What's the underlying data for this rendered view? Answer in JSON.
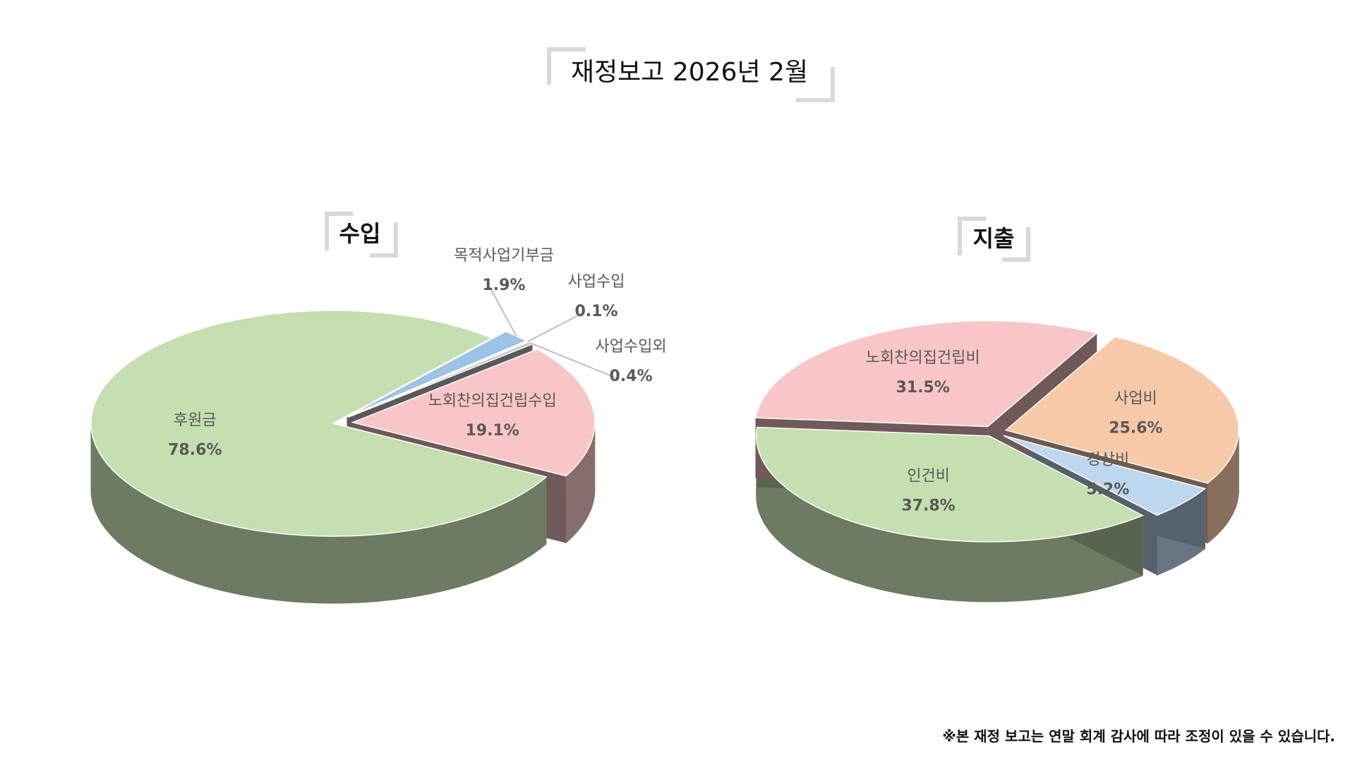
{
  "title": "재정보고 2026년 2월",
  "note": "※본 재정 보고는 연말 회계 감사에 따라 조정이 있을 수 있습니다.",
  "chart_data": [
    {
      "type": "pie",
      "title": "수입",
      "categories": [
        "목적사업기부금",
        "사업수입",
        "사업수입외",
        "노회찬의집건립수입",
        "후원금"
      ],
      "values": [
        1.9,
        0.1,
        0.4,
        19.1,
        78.6
      ],
      "value_labels": [
        "1.9%",
        "0.1%",
        "0.4%",
        "19.1%",
        "78.6%"
      ],
      "colors": [
        "#9dc3e6",
        "#f4b183",
        "#c9c9c9",
        "#f8c6c6",
        "#c5dfb0"
      ]
    },
    {
      "type": "pie",
      "title": "지출",
      "categories": [
        "사업비",
        "경상비",
        "인건비",
        "노회찬의집건립비"
      ],
      "values": [
        25.6,
        5.2,
        37.8,
        31.5
      ],
      "value_labels": [
        "25.6%",
        "5.2%",
        "37.8%",
        "31.5%"
      ],
      "colors": [
        "#f6c9a8",
        "#bdd7ee",
        "#c5dfb0",
        "#f8c6c6"
      ]
    }
  ]
}
